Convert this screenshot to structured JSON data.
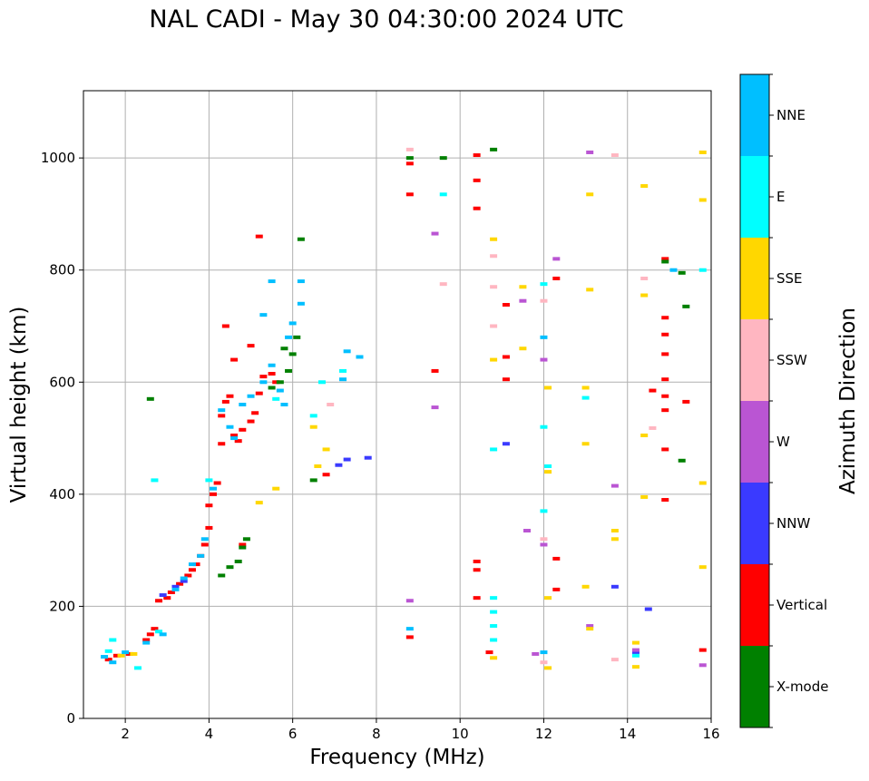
{
  "chart_data": {
    "type": "scatter",
    "title": "NAL CADI - May 30 04:30:00 2024 UTC",
    "xlabel": "Frequency (MHz)",
    "ylabel": "Virtual height (km)",
    "xlim": [
      1,
      16
    ],
    "ylim": [
      0,
      1120
    ],
    "grid": true,
    "x_ticks": [
      2,
      4,
      6,
      8,
      10,
      12,
      14,
      16
    ],
    "y_ticks": [
      0,
      200,
      400,
      600,
      800,
      1000
    ],
    "x_tick_labels": [
      "2",
      "4",
      "6",
      "8",
      "10",
      "12",
      "14",
      "16"
    ],
    "y_tick_labels": [
      "0",
      "200",
      "400",
      "600",
      "800",
      "1000"
    ],
    "colorbar": {
      "label": "Azimuth Direction",
      "categories": [
        "NNE",
        "E",
        "SSE",
        "SSW",
        "W",
        "NNW",
        "Vertical",
        "X-mode"
      ],
      "colors": [
        "#00bfff",
        "#00ffff",
        "#ffd700",
        "#ffb6c1",
        "#ba55d3",
        "#3a3aff",
        "#ff0000",
        "#008000"
      ]
    },
    "series": [
      {
        "name": "Vertical",
        "color": "#ff0000",
        "points": [
          [
            1.6,
            105
          ],
          [
            1.8,
            112
          ],
          [
            2.1,
            115
          ],
          [
            2.5,
            140
          ],
          [
            2.6,
            150
          ],
          [
            2.7,
            160
          ],
          [
            2.8,
            210
          ],
          [
            3.0,
            215
          ],
          [
            3.1,
            225
          ],
          [
            3.3,
            240
          ],
          [
            3.5,
            255
          ],
          [
            3.6,
            265
          ],
          [
            3.7,
            275
          ],
          [
            3.8,
            290
          ],
          [
            3.9,
            310
          ],
          [
            4.0,
            340
          ],
          [
            4.0,
            380
          ],
          [
            4.1,
            400
          ],
          [
            4.2,
            420
          ],
          [
            4.3,
            490
          ],
          [
            4.3,
            540
          ],
          [
            4.4,
            565
          ],
          [
            4.5,
            575
          ],
          [
            4.6,
            505
          ],
          [
            4.7,
            495
          ],
          [
            4.8,
            515
          ],
          [
            5.0,
            530
          ],
          [
            5.1,
            545
          ],
          [
            4.8,
            310
          ],
          [
            5.2,
            580
          ],
          [
            5.3,
            610
          ],
          [
            5.5,
            615
          ],
          [
            5.6,
            600
          ],
          [
            4.4,
            700
          ],
          [
            4.6,
            640
          ],
          [
            5.0,
            665
          ],
          [
            5.2,
            860
          ],
          [
            6.8,
            435
          ],
          [
            8.8,
            145
          ],
          [
            8.8,
            935
          ],
          [
            8.8,
            990
          ],
          [
            9.4,
            620
          ],
          [
            10.4,
            215
          ],
          [
            10.4,
            265
          ],
          [
            10.4,
            280
          ],
          [
            10.4,
            910
          ],
          [
            10.4,
            960
          ],
          [
            10.4,
            1005
          ],
          [
            10.7,
            118
          ],
          [
            11.1,
            605
          ],
          [
            11.1,
            645
          ],
          [
            11.1,
            738
          ],
          [
            12.3,
            230
          ],
          [
            12.3,
            285
          ],
          [
            12.3,
            785
          ],
          [
            14.6,
            585
          ],
          [
            14.9,
            390
          ],
          [
            14.9,
            480
          ],
          [
            14.9,
            550
          ],
          [
            14.9,
            575
          ],
          [
            14.9,
            605
          ],
          [
            14.9,
            650
          ],
          [
            14.9,
            685
          ],
          [
            14.9,
            715
          ],
          [
            14.9,
            820
          ],
          [
            15.4,
            565
          ],
          [
            15.8,
            122
          ]
        ]
      },
      {
        "name": "X-mode",
        "color": "#008000",
        "points": [
          [
            2.6,
            570
          ],
          [
            4.3,
            255
          ],
          [
            4.5,
            270
          ],
          [
            4.7,
            280
          ],
          [
            4.8,
            305
          ],
          [
            4.9,
            320
          ],
          [
            5.5,
            590
          ],
          [
            5.7,
            600
          ],
          [
            5.9,
            620
          ],
          [
            6.0,
            650
          ],
          [
            6.1,
            680
          ],
          [
            6.2,
            855
          ],
          [
            5.8,
            660
          ],
          [
            6.5,
            425
          ],
          [
            8.8,
            1000
          ],
          [
            9.6,
            1000
          ],
          [
            10.8,
            1015
          ],
          [
            14.9,
            815
          ],
          [
            15.4,
            735
          ],
          [
            15.3,
            795
          ],
          [
            15.3,
            460
          ]
        ]
      },
      {
        "name": "NNW",
        "color": "#3a3aff",
        "points": [
          [
            2.9,
            220
          ],
          [
            3.2,
            235
          ],
          [
            3.4,
            245
          ],
          [
            7.1,
            452
          ],
          [
            7.3,
            462
          ],
          [
            7.8,
            465
          ],
          [
            13.7,
            235
          ],
          [
            14.2,
            118
          ],
          [
            14.5,
            195
          ],
          [
            11.1,
            490
          ]
        ]
      },
      {
        "name": "W",
        "color": "#ba55d3",
        "points": [
          [
            8.8,
            210
          ],
          [
            9.4,
            555
          ],
          [
            9.4,
            865
          ],
          [
            11.5,
            745
          ],
          [
            11.6,
            335
          ],
          [
            11.8,
            115
          ],
          [
            12.0,
            310
          ],
          [
            12.3,
            820
          ],
          [
            13.1,
            165
          ],
          [
            13.1,
            1010
          ],
          [
            13.7,
            415
          ],
          [
            14.2,
            122
          ],
          [
            15.8,
            95
          ],
          [
            12.0,
            640
          ]
        ]
      },
      {
        "name": "SSW",
        "color": "#ffb6c1",
        "points": [
          [
            6.9,
            560
          ],
          [
            8.8,
            1015
          ],
          [
            9.6,
            775
          ],
          [
            10.8,
            770
          ],
          [
            10.8,
            825
          ],
          [
            10.8,
            700
          ],
          [
            12.0,
            100
          ],
          [
            12.0,
            320
          ],
          [
            12.0,
            745
          ],
          [
            13.7,
            105
          ],
          [
            13.7,
            1005
          ],
          [
            14.4,
            785
          ],
          [
            14.6,
            518
          ]
        ]
      },
      {
        "name": "SSE",
        "color": "#ffd700",
        "points": [
          [
            1.9,
            112
          ],
          [
            2.2,
            115
          ],
          [
            6.5,
            520
          ],
          [
            6.8,
            480
          ],
          [
            6.6,
            450
          ],
          [
            5.6,
            410
          ],
          [
            5.2,
            385
          ],
          [
            10.8,
            108
          ],
          [
            10.8,
            855
          ],
          [
            10.8,
            640
          ],
          [
            11.5,
            770
          ],
          [
            11.5,
            660
          ],
          [
            12.1,
            90
          ],
          [
            12.1,
            215
          ],
          [
            12.1,
            440
          ],
          [
            12.1,
            590
          ],
          [
            13.0,
            235
          ],
          [
            13.0,
            490
          ],
          [
            13.0,
            590
          ],
          [
            13.1,
            160
          ],
          [
            13.1,
            765
          ],
          [
            13.7,
            320
          ],
          [
            13.7,
            335
          ],
          [
            14.2,
            92
          ],
          [
            14.2,
            135
          ],
          [
            14.4,
            395
          ],
          [
            14.4,
            505
          ],
          [
            14.4,
            755
          ],
          [
            14.4,
            950
          ],
          [
            15.8,
            270
          ],
          [
            15.8,
            420
          ],
          [
            15.8,
            925
          ],
          [
            15.8,
            1010
          ],
          [
            13.1,
            935
          ]
        ]
      },
      {
        "name": "E",
        "color": "#00ffff",
        "points": [
          [
            1.6,
            120
          ],
          [
            1.7,
            140
          ],
          [
            2.3,
            90
          ],
          [
            2.7,
            425
          ],
          [
            2.8,
            155
          ],
          [
            4.0,
            425
          ],
          [
            5.6,
            570
          ],
          [
            6.5,
            540
          ],
          [
            6.7,
            600
          ],
          [
            7.2,
            620
          ],
          [
            9.6,
            935
          ],
          [
            10.8,
            140
          ],
          [
            10.8,
            165
          ],
          [
            10.8,
            190
          ],
          [
            10.8,
            215
          ],
          [
            12.0,
            370
          ],
          [
            12.0,
            520
          ],
          [
            12.0,
            775
          ],
          [
            12.1,
            450
          ],
          [
            13.0,
            572
          ],
          [
            14.2,
            112
          ],
          [
            15.8,
            800
          ],
          [
            10.8,
            480
          ]
        ]
      },
      {
        "name": "NNE",
        "color": "#00bfff",
        "points": [
          [
            1.5,
            110
          ],
          [
            1.7,
            100
          ],
          [
            2.0,
            118
          ],
          [
            2.5,
            135
          ],
          [
            2.9,
            150
          ],
          [
            3.2,
            230
          ],
          [
            3.4,
            250
          ],
          [
            3.6,
            275
          ],
          [
            3.8,
            290
          ],
          [
            3.9,
            320
          ],
          [
            4.1,
            410
          ],
          [
            4.3,
            550
          ],
          [
            4.5,
            520
          ],
          [
            4.6,
            500
          ],
          [
            4.8,
            560
          ],
          [
            5.0,
            575
          ],
          [
            5.3,
            600
          ],
          [
            5.5,
            630
          ],
          [
            5.7,
            585
          ],
          [
            5.8,
            560
          ],
          [
            5.9,
            680
          ],
          [
            6.0,
            705
          ],
          [
            6.2,
            740
          ],
          [
            6.2,
            780
          ],
          [
            5.3,
            720
          ],
          [
            5.5,
            780
          ],
          [
            7.3,
            655
          ],
          [
            7.6,
            645
          ],
          [
            7.2,
            605
          ],
          [
            8.8,
            160
          ],
          [
            12.0,
            680
          ],
          [
            12.0,
            118
          ],
          [
            15.1,
            800
          ]
        ]
      }
    ]
  }
}
